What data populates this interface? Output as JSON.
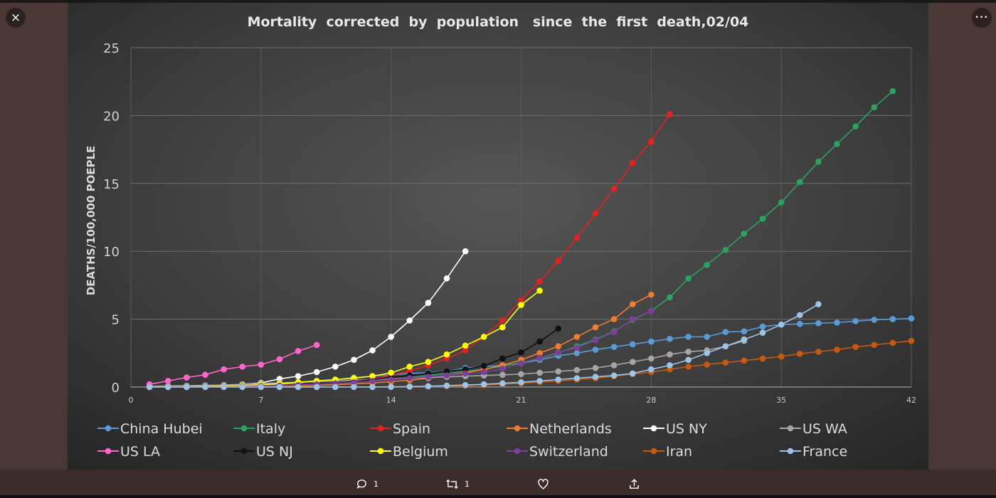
{
  "viewer": {
    "close_icon": "×",
    "more_icon": "•••"
  },
  "actions": {
    "reply_count": "1",
    "retweet_count": "1"
  },
  "chart_data": {
    "type": "line",
    "title": "Mortality  corrected  by  population   since  the  first  death,02/04",
    "xlabel": "",
    "ylabel": "DEATHS/100,000 POEPLE",
    "xlim": [
      0,
      42
    ],
    "ylim": [
      0,
      25
    ],
    "x_ticks": [
      0,
      7,
      14,
      21,
      28,
      35,
      42
    ],
    "y_ticks": [
      0,
      5,
      10,
      15,
      20,
      25
    ],
    "grid": true,
    "legend_position": "bottom",
    "series": [
      {
        "name": "China Hubei",
        "color": "#5b9bd5",
        "x_start": 1,
        "values": [
          0,
          0,
          0.02,
          0.04,
          0.06,
          0.1,
          0.15,
          0.2,
          0.3,
          0.45,
          0.55,
          0.7,
          0.8,
          0.9,
          1.0,
          1.05,
          1.15,
          1.4,
          1.5,
          1.6,
          1.75,
          2.0,
          2.3,
          2.5,
          2.75,
          2.95,
          3.15,
          3.35,
          3.55,
          3.7,
          3.7,
          4.05,
          4.1,
          4.45,
          4.6,
          4.65,
          4.7,
          4.75,
          4.85,
          4.95,
          5.0,
          5.05
        ]
      },
      {
        "name": "Italy",
        "color": "#2ca25f",
        "x_start": 1,
        "values": [
          0,
          0,
          0,
          0.01,
          0.02,
          0.03,
          0.05,
          0.08,
          0.12,
          0.18,
          0.25,
          0.35,
          0.45,
          0.55,
          0.7,
          0.85,
          1.0,
          1.15,
          1.3,
          1.55,
          1.8,
          2.1,
          2.5,
          3.0,
          3.5,
          4.1,
          4.95,
          5.6,
          6.6,
          8.0,
          9.0,
          10.1,
          11.3,
          12.4,
          13.6,
          15.1,
          16.6,
          17.9,
          19.2,
          20.6,
          21.8
        ]
      },
      {
        "name": "Spain",
        "color": "#e32222",
        "x_start": 1,
        "values": [
          0,
          0,
          0,
          0.01,
          0.02,
          0.04,
          0.06,
          0.1,
          0.15,
          0.2,
          0.3,
          0.4,
          0.6,
          0.85,
          1.2,
          1.6,
          2.1,
          2.7,
          3.7,
          4.9,
          6.4,
          7.8,
          9.3,
          11.0,
          12.8,
          14.6,
          16.5,
          18.1,
          20.1
        ]
      },
      {
        "name": "Netherlands",
        "color": "#ed7d31",
        "x_start": 1,
        "values": [
          0,
          0,
          0,
          0,
          0.01,
          0.02,
          0.04,
          0.06,
          0.09,
          0.12,
          0.17,
          0.23,
          0.3,
          0.4,
          0.5,
          0.65,
          0.85,
          1.05,
          1.3,
          1.6,
          2.0,
          2.5,
          3.0,
          3.7,
          4.4,
          5.0,
          6.1,
          6.8
        ]
      },
      {
        "name": "US NY",
        "color": "#ffffff",
        "x_start": 1,
        "values": [
          0,
          0,
          0.02,
          0.05,
          0.1,
          0.2,
          0.3,
          0.6,
          0.8,
          1.1,
          1.5,
          2.0,
          2.7,
          3.7,
          4.9,
          6.2,
          8.0,
          10.0
        ]
      },
      {
        "name": "US WA",
        "color": "#a5a5a5",
        "x_start": 1,
        "values": [
          0.05,
          0.08,
          0.1,
          0.12,
          0.15,
          0.2,
          0.25,
          0.3,
          0.35,
          0.4,
          0.45,
          0.5,
          0.55,
          0.6,
          0.65,
          0.7,
          0.75,
          0.8,
          0.85,
          0.9,
          0.95,
          1.05,
          1.15,
          1.25,
          1.4,
          1.6,
          1.85,
          2.1,
          2.4,
          2.6,
          2.7,
          3.0,
          3.4
        ]
      },
      {
        "name": "US LA",
        "color": "#ff66cc",
        "x_start": 1,
        "values": [
          0.2,
          0.45,
          0.7,
          0.9,
          1.3,
          1.5,
          1.65,
          2.05,
          2.65,
          3.1
        ]
      },
      {
        "name": "US NJ",
        "color": "#111111",
        "x_start": 1,
        "values": [
          0,
          0,
          0,
          0.01,
          0.02,
          0.04,
          0.06,
          0.1,
          0.15,
          0.22,
          0.3,
          0.4,
          0.55,
          0.7,
          0.85,
          1.0,
          1.15,
          1.3,
          1.55,
          2.1,
          2.55,
          3.35,
          4.3
        ]
      },
      {
        "name": "Belgium",
        "color": "#ffff00",
        "x_start": 1,
        "values": [
          0,
          0,
          0,
          0.02,
          0.05,
          0.1,
          0.17,
          0.25,
          0.35,
          0.45,
          0.55,
          0.65,
          0.8,
          1.05,
          1.5,
          1.85,
          2.4,
          3.05,
          3.7,
          4.4,
          6.05,
          7.1
        ]
      },
      {
        "name": "Switzerland",
        "color": "#7e3f98",
        "x_start": 1,
        "values": [
          0,
          0,
          0,
          0.01,
          0.02,
          0.04,
          0.07,
          0.1,
          0.15,
          0.2,
          0.27,
          0.35,
          0.45,
          0.55,
          0.65,
          0.75,
          0.85,
          1.0,
          1.1,
          1.35,
          1.75,
          2.15,
          2.55,
          2.9,
          3.45,
          4.05,
          5.0,
          5.6
        ]
      },
      {
        "name": "Iran",
        "color": "#c55a11",
        "x_start": 1,
        "values": [
          0,
          0,
          0,
          0,
          0,
          0,
          0,
          0,
          0,
          0,
          0,
          0,
          0.01,
          0.02,
          0.03,
          0.05,
          0.07,
          0.1,
          0.15,
          0.2,
          0.28,
          0.36,
          0.45,
          0.55,
          0.65,
          0.8,
          0.95,
          1.1,
          1.3,
          1.5,
          1.65,
          1.8,
          1.95,
          2.1,
          2.25,
          2.45,
          2.6,
          2.75,
          2.95,
          3.1,
          3.25,
          3.4
        ]
      },
      {
        "name": "France",
        "color": "#9dc3e6",
        "x_start": 1,
        "values": [
          0,
          0,
          0,
          0,
          0,
          0,
          0,
          0,
          0,
          0,
          0,
          0,
          0,
          0.01,
          0.03,
          0.06,
          0.1,
          0.15,
          0.2,
          0.27,
          0.35,
          0.45,
          0.55,
          0.65,
          0.75,
          0.85,
          1.0,
          1.3,
          1.6,
          2.0,
          2.5,
          3.0,
          3.5,
          4.0,
          4.6,
          5.3,
          6.1
        ]
      }
    ]
  }
}
